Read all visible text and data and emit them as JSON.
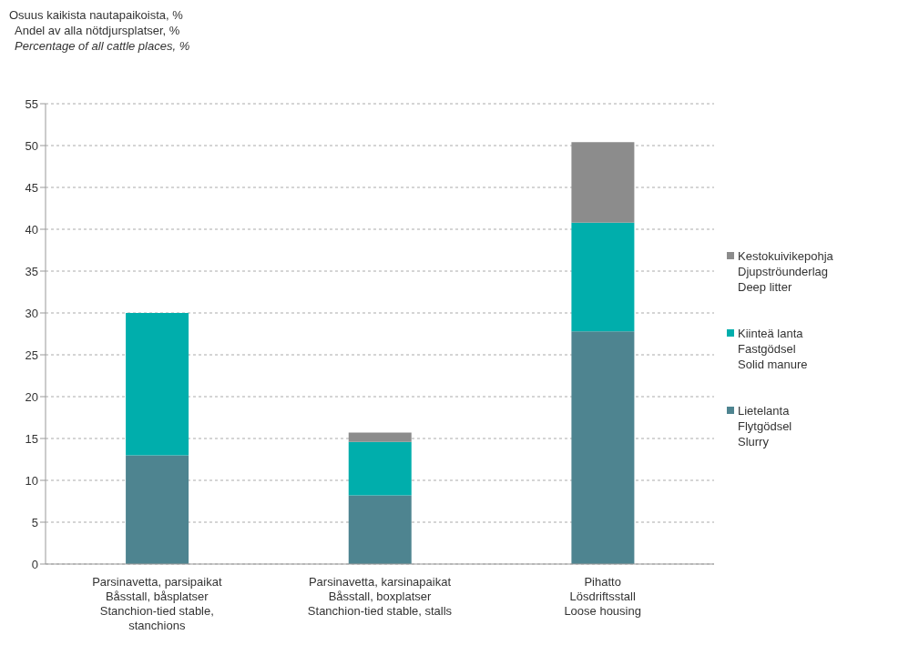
{
  "chart_data": {
    "type": "bar",
    "stacked": true,
    "title": "Osuus kaikista nautapaikoista, %\nAndel av alla nötdjursplatser, %\nPercentage of all cattle places, %",
    "categories": [
      "Parsinavetta, parsipaikat\nBåsstall, båsplatser\nStanchion-tied stable,\nstanchions",
      "Parsinavetta, karsinapaikat\nBåsstall, boxplatser\nStanchion-tied stable, stalls",
      "Pihatto\nLösdriftsstall\nLoose housing"
    ],
    "series": [
      {
        "name": "Lietelanta\nFlytgödsel\nSlurry",
        "color": "#4e8490",
        "values": [
          13.0,
          8.2,
          27.8
        ]
      },
      {
        "name": "Kiinteä lanta\nFastgödsel\nSolid manure",
        "color": "#00aeac",
        "values": [
          17.0,
          6.4,
          13.0
        ]
      },
      {
        "name": "Kestokuivikepohja\nDjupströunderlag\nDeep litter",
        "color": "#8c8c8c",
        "values": [
          0,
          1.1,
          9.6
        ]
      }
    ],
    "ylim": [
      0,
      55
    ],
    "yticks": [
      0,
      5,
      10,
      15,
      20,
      25,
      30,
      35,
      40,
      45,
      50,
      55
    ],
    "grid": "y",
    "legend": "right"
  }
}
